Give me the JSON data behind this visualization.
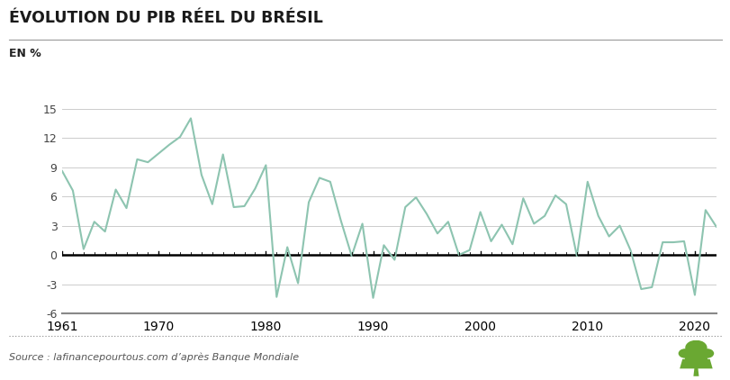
{
  "title": "ÉVOLUTION DU PIB RÉEL DU BRÉSIL",
  "ylabel": "EN %",
  "source": "Source : lafinancepourtous.com d’après Banque Mondiale",
  "line_color": "#8dc4b0",
  "line_width": 1.5,
  "background_color": "#ffffff",
  "title_color": "#1a1a1a",
  "ylim": [
    -6,
    16
  ],
  "yticks": [
    -6,
    -3,
    0,
    3,
    6,
    9,
    12,
    15
  ],
  "xlim": [
    1961,
    2022
  ],
  "xticks": [
    1961,
    1970,
    1980,
    1990,
    2000,
    2010,
    2020
  ],
  "years": [
    1961,
    1962,
    1963,
    1964,
    1965,
    1966,
    1967,
    1968,
    1969,
    1970,
    1971,
    1972,
    1973,
    1974,
    1975,
    1976,
    1977,
    1978,
    1979,
    1980,
    1981,
    1982,
    1983,
    1984,
    1985,
    1986,
    1987,
    1988,
    1989,
    1990,
    1991,
    1992,
    1993,
    1994,
    1995,
    1996,
    1997,
    1998,
    1999,
    2000,
    2001,
    2002,
    2003,
    2004,
    2005,
    2006,
    2007,
    2008,
    2009,
    2010,
    2011,
    2012,
    2013,
    2014,
    2015,
    2016,
    2017,
    2018,
    2019,
    2020,
    2021,
    2022
  ],
  "values": [
    8.6,
    6.6,
    0.6,
    3.4,
    2.4,
    6.7,
    4.8,
    9.8,
    9.5,
    10.4,
    11.3,
    12.1,
    14.0,
    8.2,
    5.2,
    10.3,
    4.9,
    5.0,
    6.8,
    9.2,
    -4.3,
    0.8,
    -2.9,
    5.4,
    7.9,
    7.5,
    3.5,
    -0.1,
    3.2,
    -4.4,
    1.0,
    -0.5,
    4.9,
    5.9,
    4.2,
    2.2,
    3.4,
    0.0,
    0.5,
    4.4,
    1.4,
    3.1,
    1.1,
    5.8,
    3.2,
    4.0,
    6.1,
    5.2,
    -0.1,
    7.5,
    4.0,
    1.9,
    3.0,
    0.5,
    -3.5,
    -3.3,
    1.3,
    1.3,
    1.4,
    -4.1,
    4.6,
    2.9
  ]
}
